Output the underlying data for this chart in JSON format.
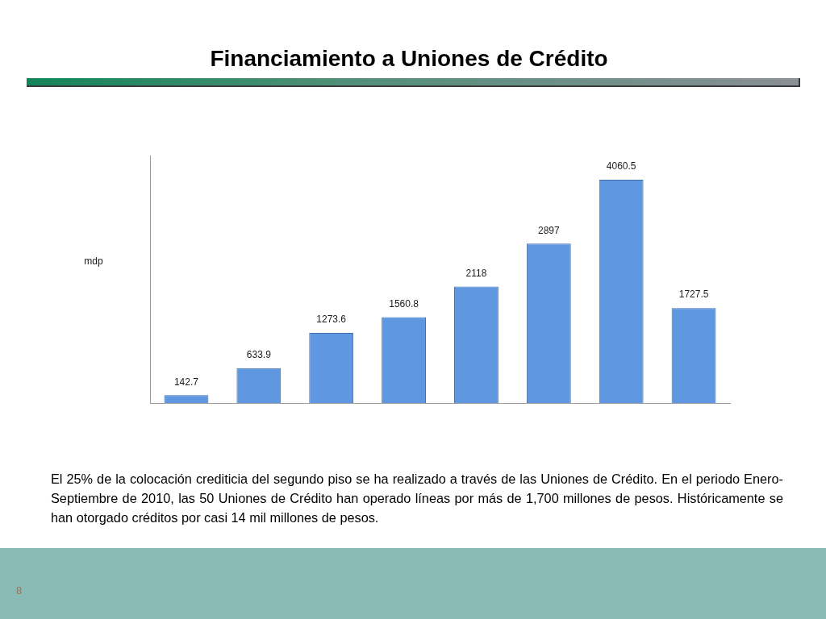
{
  "chart_data": {
    "type": "bar",
    "title": "Financiamiento a Uniones de Crédito",
    "ylabel": "mdp",
    "categories": [
      null,
      null,
      null,
      null,
      null,
      null,
      null,
      null
    ],
    "values": [
      142.7,
      633.9,
      1273.6,
      1560.8,
      2118,
      2897,
      4060.5,
      1727.5
    ],
    "color": "#5f97e0",
    "ylim": [
      0,
      4500
    ],
    "tick_labels": false,
    "data_labels": true,
    "annotations": [
      "El 25% de la colocación crediticia del segundo piso se ha realizado a través de las Uniones de Crédito. En el periodo Enero-Septiembre de 2010, las 50 Uniones de Crédito han operado líneas por más de 1,700 millones de pesos. Históricamente se han otorgado créditos por casi 14 mil millones de pesos.",
      "8"
    ]
  }
}
